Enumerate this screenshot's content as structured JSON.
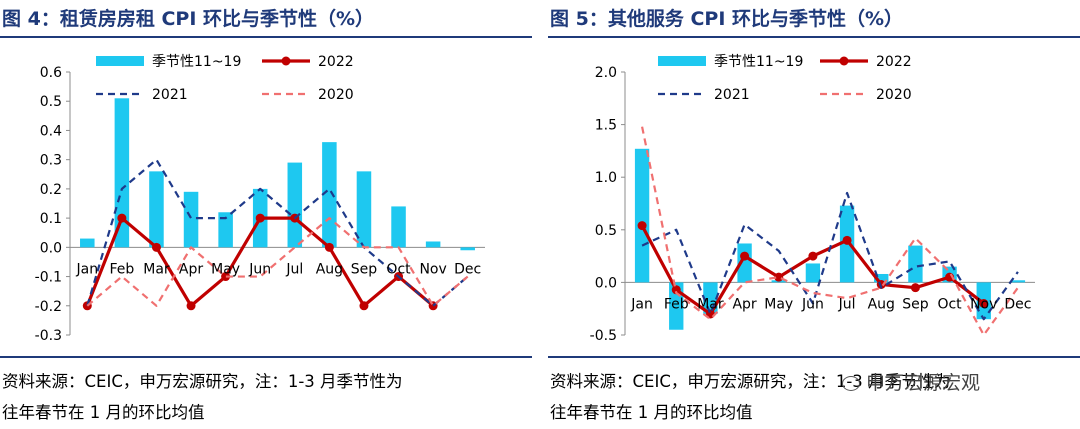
{
  "left": {
    "title": "图 4：租赁房房租 CPI 环比与季节性（%）",
    "source_line1": "资料来源：CEIC，申万宏源研究，注：1-3 月季节性为",
    "source_line2": "往年春节在 1 月的环比均值",
    "chart_data": {
      "type": "bar",
      "categories": [
        "Jan",
        "Feb",
        "Mar",
        "Apr",
        "May",
        "Jun",
        "Jul",
        "Aug",
        "Sep",
        "Oct",
        "Nov",
        "Dec"
      ],
      "ylim": [
        -0.3,
        0.6
      ],
      "yticks": [
        "-0.3",
        "-0.2",
        "-0.1",
        "0.0",
        "0.1",
        "0.2",
        "0.3",
        "0.4",
        "0.5",
        "0.6"
      ],
      "series": [
        {
          "name": "季节性11~19",
          "kind": "bar",
          "color": "#1ec8f0",
          "values": [
            0.03,
            0.51,
            0.26,
            0.19,
            0.12,
            0.2,
            0.29,
            0.36,
            0.26,
            0.14,
            0.02,
            -0.01
          ]
        },
        {
          "name": "2022",
          "kind": "line-marker",
          "color": "#c00000",
          "values": [
            -0.2,
            0.1,
            0.0,
            -0.2,
            -0.1,
            0.1,
            0.1,
            0.0,
            -0.2,
            -0.1,
            -0.2,
            null
          ]
        },
        {
          "name": "2021",
          "kind": "dash",
          "color": "#1f3a8a",
          "values": [
            -0.2,
            0.2,
            0.3,
            0.1,
            0.1,
            0.2,
            0.1,
            0.2,
            0.0,
            -0.1,
            -0.2,
            -0.1
          ]
        },
        {
          "name": "2020",
          "kind": "dash",
          "color": "#f07070",
          "values": [
            -0.2,
            -0.1,
            -0.2,
            0.0,
            -0.1,
            -0.1,
            0.0,
            0.1,
            0.0,
            0.0,
            -0.2,
            -0.1
          ]
        }
      ]
    }
  },
  "right": {
    "title": "图 5：其他服务 CPI 环比与季节性（%）",
    "source_line1": "资料来源：CEIC，申万宏源研究，注：1-3 月季节性为",
    "source_line2": "往年春节在 1 月的环比均值",
    "chart_data": {
      "type": "bar",
      "categories": [
        "Jan",
        "Feb",
        "Mar",
        "Apr",
        "May",
        "Jun",
        "Jul",
        "Aug",
        "Sep",
        "Oct",
        "Nov",
        "Dec"
      ],
      "ylim": [
        -0.5,
        2.0
      ],
      "yticks": [
        "-0.5",
        "0.0",
        "0.5",
        "1.0",
        "1.5",
        "2.0"
      ],
      "series": [
        {
          "name": "季节性11~19",
          "kind": "bar",
          "color": "#1ec8f0",
          "values": [
            1.27,
            -0.45,
            -0.3,
            0.37,
            0.02,
            0.18,
            0.73,
            0.08,
            0.35,
            0.15,
            -0.35,
            0.02
          ]
        },
        {
          "name": "2022",
          "kind": "line-marker",
          "color": "#c00000",
          "values": [
            0.54,
            -0.07,
            -0.3,
            0.25,
            0.05,
            0.25,
            0.4,
            -0.02,
            -0.05,
            0.05,
            -0.2,
            null
          ]
        },
        {
          "name": "2021",
          "kind": "dash",
          "color": "#1f3a8a",
          "values": [
            0.35,
            0.5,
            -0.3,
            0.55,
            0.3,
            -0.2,
            0.85,
            -0.05,
            0.15,
            0.2,
            -0.35,
            0.1
          ]
        },
        {
          "name": "2020",
          "kind": "dash",
          "color": "#f07070",
          "values": [
            1.48,
            -0.1,
            -0.35,
            0.0,
            0.05,
            -0.1,
            -0.15,
            -0.05,
            0.42,
            0.1,
            -0.5,
            -0.05
          ]
        }
      ]
    }
  },
  "watermark": "申万宏源宏观"
}
